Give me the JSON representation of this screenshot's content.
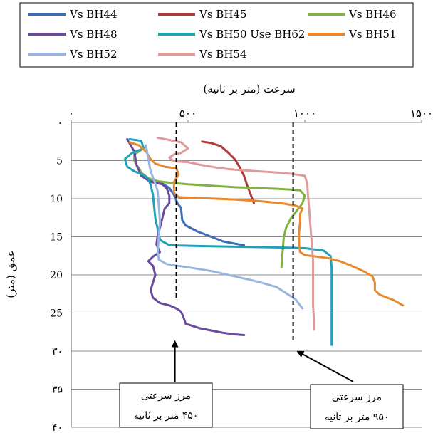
{
  "chart_data": {
    "type": "line",
    "xlabel": "سرعت (متر بر ثانیه)",
    "ylabel": "عمق (متر)",
    "xlim": [
      0,
      1500
    ],
    "ylim": [
      40,
      0
    ],
    "x_axis_position": "top",
    "x_ticks": [
      {
        "value": 0,
        "label": "۰"
      },
      {
        "value": 500,
        "label": "۵۰۰"
      },
      {
        "value": 1000,
        "label": "۱۰۰۰"
      },
      {
        "value": 1500,
        "label": "۱۵۰۰"
      }
    ],
    "y_ticks": [
      {
        "value": 0,
        "label": "۰"
      },
      {
        "value": 5,
        "label": "5"
      },
      {
        "value": 10,
        "label": "10"
      },
      {
        "value": 15,
        "label": "15"
      },
      {
        "value": 20,
        "label": "20"
      },
      {
        "value": 25,
        "label": "25"
      },
      {
        "value": 30,
        "label": "۳۰"
      },
      {
        "value": 35,
        "label": "۳۵"
      },
      {
        "value": 40,
        "label": "۴۰"
      }
    ],
    "grid": {
      "horizontal": true,
      "vertical": false
    },
    "legend": {
      "placement": "top",
      "columns": 3
    },
    "series": [
      {
        "name": "Vs BH44",
        "color": "#3d6db5",
        "points": [
          [
            330,
            7.6
          ],
          [
            360,
            7.8
          ],
          [
            390,
            8.0
          ],
          [
            420,
            8.6
          ],
          [
            440,
            9.5
          ],
          [
            455,
            10.6
          ],
          [
            470,
            11.2
          ],
          [
            475,
            12.8
          ],
          [
            490,
            13.5
          ],
          [
            540,
            14.3
          ],
          [
            600,
            15.0
          ],
          [
            650,
            15.6
          ],
          [
            700,
            15.9
          ],
          [
            740,
            16.1
          ]
        ]
      },
      {
        "name": "Vs BH45",
        "color": "#b03a3a",
        "points": [
          [
            560,
            2.5
          ],
          [
            600,
            2.7
          ],
          [
            640,
            3.1
          ],
          [
            670,
            3.9
          ],
          [
            700,
            4.8
          ],
          [
            720,
            5.8
          ],
          [
            740,
            7.0
          ],
          [
            755,
            8.4
          ],
          [
            770,
            9.6
          ],
          [
            782,
            10.6
          ]
        ]
      },
      {
        "name": "Vs BH46",
        "color": "#82b043",
        "points": [
          [
            300,
            3.6
          ],
          [
            270,
            4.2
          ],
          [
            270,
            5.0
          ],
          [
            280,
            5.6
          ],
          [
            290,
            6.0
          ],
          [
            300,
            6.6
          ],
          [
            330,
            7.3
          ],
          [
            370,
            7.7
          ],
          [
            420,
            7.9
          ],
          [
            500,
            8.1
          ],
          [
            600,
            8.3
          ],
          [
            700,
            8.5
          ],
          [
            800,
            8.6
          ],
          [
            880,
            8.7
          ],
          [
            940,
            8.8
          ],
          [
            980,
            8.9
          ],
          [
            1000,
            9.6
          ],
          [
            990,
            10.6
          ],
          [
            960,
            11.8
          ],
          [
            940,
            12.6
          ],
          [
            920,
            13.8
          ],
          [
            910,
            15.0
          ],
          [
            905,
            17.0
          ],
          [
            900,
            19.0
          ]
        ]
      },
      {
        "name": "Vs BH48",
        "color": "#6a4a9e",
        "points": [
          [
            240,
            2.2
          ],
          [
            270,
            3.8
          ],
          [
            280,
            5.6
          ],
          [
            300,
            7.0
          ],
          [
            340,
            7.8
          ],
          [
            390,
            8.1
          ],
          [
            410,
            8.7
          ],
          [
            420,
            9.6
          ],
          [
            420,
            10.6
          ],
          [
            400,
            11.3
          ],
          [
            390,
            12.6
          ],
          [
            380,
            13.8
          ],
          [
            370,
            14.8
          ],
          [
            365,
            16.0
          ],
          [
            380,
            17.0
          ],
          [
            350,
            17.6
          ],
          [
            330,
            18.2
          ],
          [
            350,
            18.8
          ],
          [
            360,
            20.0
          ],
          [
            350,
            21.0
          ],
          [
            340,
            22.0
          ],
          [
            350,
            23.0
          ],
          [
            380,
            23.7
          ],
          [
            420,
            24.0
          ],
          [
            450,
            24.4
          ],
          [
            470,
            24.8
          ],
          [
            480,
            25.5
          ],
          [
            490,
            26.4
          ],
          [
            520,
            26.7
          ],
          [
            550,
            27.0
          ],
          [
            600,
            27.3
          ],
          [
            650,
            27.6
          ],
          [
            700,
            27.8
          ],
          [
            740,
            27.9
          ]
        ]
      },
      {
        "name": "Vs BH50 Use BH62",
        "color": "#22a0b8",
        "points": [
          [
            250,
            2.2
          ],
          [
            300,
            2.4
          ],
          [
            310,
            3.4
          ],
          [
            260,
            4.0
          ],
          [
            230,
            4.8
          ],
          [
            240,
            5.8
          ],
          [
            270,
            6.4
          ],
          [
            310,
            6.9
          ],
          [
            330,
            7.4
          ],
          [
            340,
            8.2
          ],
          [
            350,
            9.5
          ],
          [
            355,
            11.0
          ],
          [
            360,
            12.6
          ],
          [
            370,
            14.0
          ],
          [
            380,
            15.4
          ],
          [
            420,
            16.1
          ],
          [
            520,
            16.2
          ],
          [
            700,
            16.3
          ],
          [
            900,
            16.4
          ],
          [
            1000,
            16.5
          ],
          [
            1080,
            16.8
          ],
          [
            1110,
            17.5
          ],
          [
            1115,
            19.0
          ],
          [
            1115,
            21.0
          ],
          [
            1115,
            23.5
          ],
          [
            1115,
            26.0
          ],
          [
            1115,
            28.0
          ],
          [
            1115,
            29.2
          ]
        ]
      },
      {
        "name": "Vs BH51",
        "color": "#e8892e",
        "points": [
          [
            250,
            2.6
          ],
          [
            290,
            3.0
          ],
          [
            320,
            3.8
          ],
          [
            340,
            4.8
          ],
          [
            360,
            5.4
          ],
          [
            400,
            5.8
          ],
          [
            450,
            6.0
          ],
          [
            460,
            6.8
          ],
          [
            440,
            7.8
          ],
          [
            440,
            9.2
          ],
          [
            460,
            9.8
          ],
          [
            530,
            9.9
          ],
          [
            620,
            10.0
          ],
          [
            700,
            10.1
          ],
          [
            800,
            10.3
          ],
          [
            900,
            10.6
          ],
          [
            960,
            10.9
          ],
          [
            990,
            11.3
          ],
          [
            980,
            12.0
          ],
          [
            980,
            13.0
          ],
          [
            975,
            14.5
          ],
          [
            975,
            16.0
          ],
          [
            980,
            17.0
          ],
          [
            1000,
            17.4
          ],
          [
            1050,
            17.6
          ],
          [
            1100,
            17.8
          ],
          [
            1150,
            18.2
          ],
          [
            1200,
            18.8
          ],
          [
            1250,
            19.5
          ],
          [
            1290,
            20.2
          ],
          [
            1300,
            21.0
          ],
          [
            1300,
            22.0
          ],
          [
            1320,
            22.6
          ],
          [
            1380,
            23.3
          ],
          [
            1420,
            24.0
          ]
        ]
      },
      {
        "name": "Vs BH52",
        "color": "#9ab5e0",
        "points": [
          [
            320,
            3.0
          ],
          [
            330,
            4.8
          ],
          [
            340,
            6.4
          ],
          [
            355,
            7.6
          ],
          [
            370,
            9.0
          ],
          [
            375,
            11.0
          ],
          [
            380,
            13.0
          ],
          [
            375,
            15.0
          ],
          [
            370,
            17.0
          ],
          [
            375,
            18.0
          ],
          [
            410,
            18.6
          ],
          [
            500,
            19.0
          ],
          [
            600,
            19.5
          ],
          [
            700,
            20.2
          ],
          [
            800,
            20.9
          ],
          [
            880,
            21.6
          ],
          [
            920,
            22.4
          ],
          [
            960,
            23.2
          ],
          [
            980,
            24.0
          ],
          [
            990,
            24.4
          ]
        ]
      },
      {
        "name": "Vs BH54",
        "color": "#e09a9a",
        "points": [
          [
            370,
            2.0
          ],
          [
            420,
            2.3
          ],
          [
            470,
            2.6
          ],
          [
            500,
            3.4
          ],
          [
            470,
            4.0
          ],
          [
            440,
            4.2
          ],
          [
            420,
            4.6
          ],
          [
            440,
            5.1
          ],
          [
            500,
            5.2
          ],
          [
            560,
            5.6
          ],
          [
            640,
            6.0
          ],
          [
            700,
            6.2
          ],
          [
            800,
            6.4
          ],
          [
            900,
            6.6
          ],
          [
            960,
            6.8
          ],
          [
            1000,
            7.0
          ],
          [
            1010,
            8.0
          ],
          [
            1015,
            10.0
          ],
          [
            1020,
            12.0
          ],
          [
            1025,
            14.0
          ],
          [
            1030,
            16.0
          ],
          [
            1035,
            18.0
          ],
          [
            1035,
            20.0
          ],
          [
            1035,
            22.0
          ],
          [
            1035,
            24.0
          ],
          [
            1040,
            26.0
          ],
          [
            1040,
            27.2
          ]
        ]
      }
    ],
    "reference_lines": [
      {
        "value": 450,
        "y_from": 0,
        "y_to": 23.0
      },
      {
        "value": 950,
        "y_from": 0,
        "y_to": 28.6
      }
    ],
    "annotations": [
      {
        "text": [
          "مرز سرعتی",
          "۴۵۰ متر بر ثانیه"
        ],
        "points_to": [
          450,
          28
        ]
      },
      {
        "text": [
          "مرز سرعتی",
          "۹۵۰ متر بر ثانیه"
        ],
        "points_to": [
          970,
          29.5
        ]
      }
    ]
  }
}
